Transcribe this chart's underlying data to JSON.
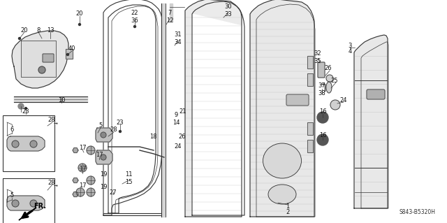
{
  "bg_color": "#ffffff",
  "diagram_code": "S843-B5320H",
  "line_color": "#333333",
  "fig_width": 6.4,
  "fig_height": 3.19,
  "dpi": 100
}
